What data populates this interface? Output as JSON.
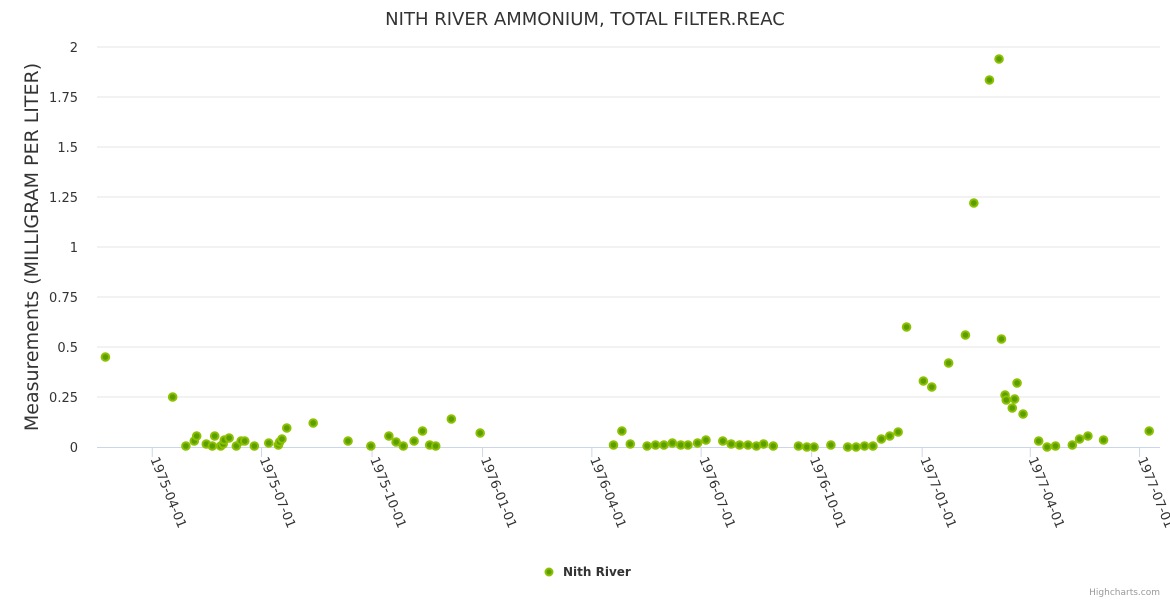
{
  "chart_data": {
    "type": "scatter",
    "title": "NITH RIVER AMMONIUM, TOTAL FILTER.REAC",
    "xlabel": "",
    "ylabel": "Measurements (MILLIGRAM PER LITER)",
    "ylim": [
      0,
      2
    ],
    "xlim": [
      "1975-02-14",
      "1977-07-18"
    ],
    "y_ticks": [
      {
        "value": 0,
        "label": "0"
      },
      {
        "value": 0.25,
        "label": "0.25"
      },
      {
        "value": 0.5,
        "label": "0.5"
      },
      {
        "value": 0.75,
        "label": "0.75"
      },
      {
        "value": 1,
        "label": "1"
      },
      {
        "value": 1.25,
        "label": "1.25"
      },
      {
        "value": 1.5,
        "label": "1.5"
      },
      {
        "value": 1.75,
        "label": "1.75"
      },
      {
        "value": 2,
        "label": "2"
      }
    ],
    "x_ticks": [
      "1975-04-01",
      "1975-07-01",
      "1975-10-01",
      "1976-01-01",
      "1976-04-01",
      "1976-07-01",
      "1976-10-01",
      "1977-01-01",
      "1977-04-01",
      "1977-07-01"
    ],
    "grid": true,
    "legend_position": "bottom-center",
    "series": [
      {
        "name": "Nith River",
        "color": "#7cb500",
        "points": [
          [
            "1975-02-21",
            0.45
          ],
          [
            "1975-04-18",
            0.25
          ],
          [
            "1975-04-29",
            0.005
          ],
          [
            "1975-05-06",
            0.03
          ],
          [
            "1975-05-08",
            0.055
          ],
          [
            "1975-05-16",
            0.015
          ],
          [
            "1975-05-21",
            0.005
          ],
          [
            "1975-05-23",
            0.055
          ],
          [
            "1975-05-28",
            0.005
          ],
          [
            "1975-05-30",
            0.015
          ],
          [
            "1975-05-31",
            0.035
          ],
          [
            "1975-06-04",
            0.045
          ],
          [
            "1975-06-10",
            0.005
          ],
          [
            "1975-06-14",
            0.03
          ],
          [
            "1975-06-17",
            0.03
          ],
          [
            "1975-06-25",
            0.005
          ],
          [
            "1975-07-07",
            0.02
          ],
          [
            "1975-07-15",
            0.01
          ],
          [
            "1975-07-16",
            0.025
          ],
          [
            "1975-07-18",
            0.04
          ],
          [
            "1975-07-22",
            0.095
          ],
          [
            "1975-08-13",
            0.12
          ],
          [
            "1975-09-11",
            0.03
          ],
          [
            "1975-09-30",
            0.005
          ],
          [
            "1975-10-15",
            0.055
          ],
          [
            "1975-10-21",
            0.025
          ],
          [
            "1975-10-27",
            0.005
          ],
          [
            "1975-11-05",
            0.03
          ],
          [
            "1975-11-12",
            0.08
          ],
          [
            "1975-11-18",
            0.01
          ],
          [
            "1975-11-23",
            0.005
          ],
          [
            "1975-12-06",
            0.14
          ],
          [
            "1975-12-30",
            0.07
          ],
          [
            "1976-04-19",
            0.01
          ],
          [
            "1976-04-26",
            0.08
          ],
          [
            "1976-05-03",
            0.015
          ],
          [
            "1976-05-17",
            0.005
          ],
          [
            "1976-05-24",
            0.01
          ],
          [
            "1976-05-31",
            0.01
          ],
          [
            "1976-06-07",
            0.02
          ],
          [
            "1976-06-14",
            0.01
          ],
          [
            "1976-06-20",
            0.01
          ],
          [
            "1976-06-28",
            0.02
          ],
          [
            "1976-07-05",
            0.035
          ],
          [
            "1976-07-19",
            0.03
          ],
          [
            "1976-07-26",
            0.015
          ],
          [
            "1976-08-02",
            0.01
          ],
          [
            "1976-08-09",
            0.01
          ],
          [
            "1976-08-16",
            0.005
          ],
          [
            "1976-08-22",
            0.015
          ],
          [
            "1976-08-30",
            0.005
          ],
          [
            "1976-09-20",
            0.005
          ],
          [
            "1976-09-27",
            0.0
          ],
          [
            "1976-10-03",
            0.0
          ],
          [
            "1976-10-17",
            0.01
          ],
          [
            "1976-10-31",
            0.0
          ],
          [
            "1976-11-07",
            0.0
          ],
          [
            "1976-11-14",
            0.005
          ],
          [
            "1976-11-21",
            0.005
          ],
          [
            "1976-11-28",
            0.04
          ],
          [
            "1976-12-05",
            0.055
          ],
          [
            "1976-12-12",
            0.075
          ],
          [
            "1976-12-19",
            0.6
          ],
          [
            "1977-01-02",
            0.33
          ],
          [
            "1977-01-09",
            0.3
          ],
          [
            "1977-01-23",
            0.42
          ],
          [
            "1977-02-06",
            0.56
          ],
          [
            "1977-02-13",
            1.22
          ],
          [
            "1977-02-26",
            1.835
          ],
          [
            "1977-03-06",
            1.94
          ],
          [
            "1977-03-08",
            0.54
          ],
          [
            "1977-03-11",
            0.26
          ],
          [
            "1977-03-12",
            0.235
          ],
          [
            "1977-03-17",
            0.195
          ],
          [
            "1977-03-19",
            0.24
          ],
          [
            "1977-03-21",
            0.32
          ],
          [
            "1977-03-26",
            0.165
          ],
          [
            "1977-04-08",
            0.03
          ],
          [
            "1977-04-15",
            0.0
          ],
          [
            "1977-04-22",
            0.005
          ],
          [
            "1977-05-06",
            0.01
          ],
          [
            "1977-05-12",
            0.04
          ],
          [
            "1977-05-19",
            0.055
          ],
          [
            "1977-06-01",
            0.035
          ],
          [
            "1977-07-09",
            0.08
          ]
        ]
      }
    ]
  },
  "legend": {
    "label": "Nith River"
  },
  "credits": "Highcharts.com"
}
